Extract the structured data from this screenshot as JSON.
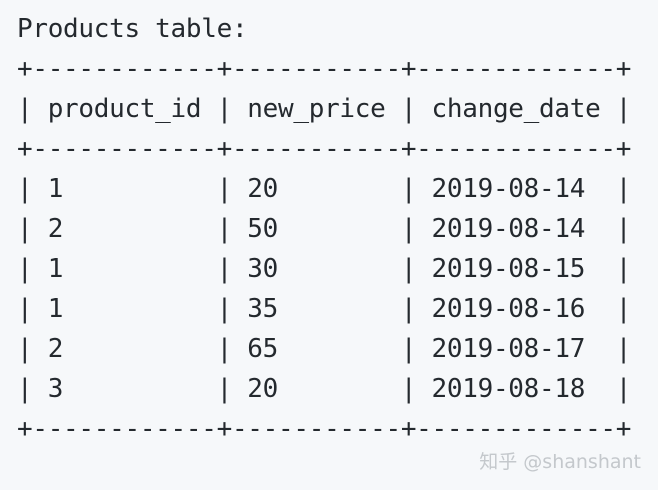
{
  "heading": "Products table:",
  "table": {
    "border": "+------------+-----------+-------------+",
    "header": "| product_id | new_price | change_date |",
    "columns": [
      "product_id",
      "new_price",
      "change_date"
    ],
    "rows": [
      {
        "text": "| 1          | 20        | 2019-08-14  |",
        "product_id": "1",
        "new_price": "20",
        "change_date": "2019-08-14"
      },
      {
        "text": "| 2          | 50        | 2019-08-14  |",
        "product_id": "2",
        "new_price": "50",
        "change_date": "2019-08-14"
      },
      {
        "text": "| 1          | 30        | 2019-08-15  |",
        "product_id": "1",
        "new_price": "30",
        "change_date": "2019-08-15"
      },
      {
        "text": "| 1          | 35        | 2019-08-16  |",
        "product_id": "1",
        "new_price": "35",
        "change_date": "2019-08-16"
      },
      {
        "text": "| 2          | 65        | 2019-08-17  |",
        "product_id": "2",
        "new_price": "65",
        "change_date": "2019-08-17"
      },
      {
        "text": "| 3          | 20        | 2019-08-18  |",
        "product_id": "3",
        "new_price": "20",
        "change_date": "2019-08-18"
      }
    ]
  },
  "watermark": "知乎 @shanshant",
  "colors": {
    "background": "#f6f8fa",
    "text": "#24292e",
    "watermark": "#c4c8cc"
  }
}
